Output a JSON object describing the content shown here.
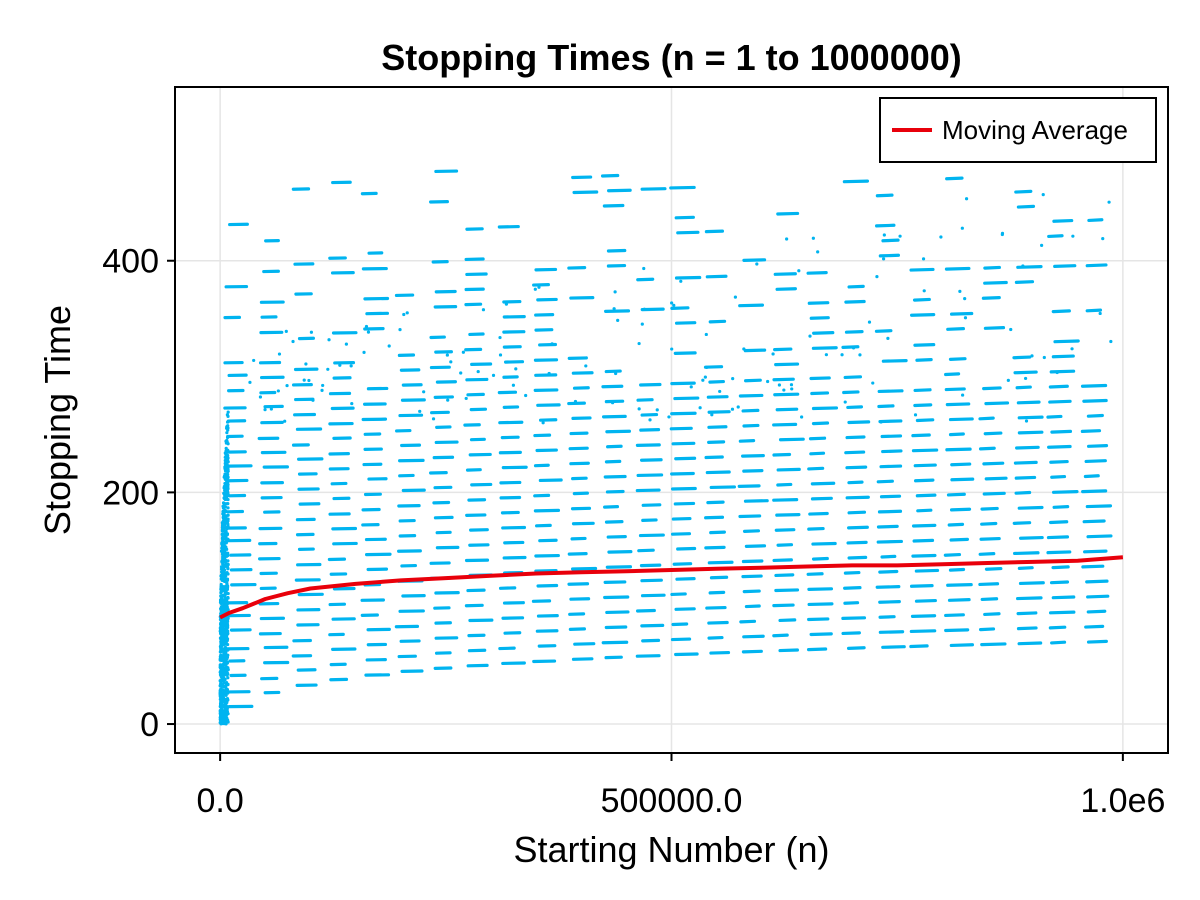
{
  "chart_data": {
    "type": "scatter",
    "title": "Stopping Times (n = 1 to 1000000)",
    "xlabel": "Starting Number (n)",
    "ylabel": "Stopping Time",
    "xlim": [
      -50000,
      1050000
    ],
    "ylim": [
      -25,
      550
    ],
    "x_ticks": [
      0,
      500000,
      1000000
    ],
    "x_tick_labels": [
      "0.0",
      "500000.0",
      "1.0e6"
    ],
    "y_ticks": [
      0,
      200,
      400
    ],
    "y_tick_labels": [
      "0",
      "200",
      "400"
    ],
    "grid": true,
    "legend": {
      "placement": "top-right",
      "entries": [
        "Moving Average"
      ]
    },
    "colors": {
      "scatter": "#00b4f0",
      "moving_average": "#e8000b"
    },
    "series": [
      {
        "kind": "scatter",
        "description_points": "dense banded point cloud of stopping times; bands drift upward with n",
        "band_y_range": [
          0,
          480
        ]
      },
      {
        "name": "Moving Average",
        "kind": "line",
        "x": [
          0,
          10000,
          25000,
          50000,
          75000,
          100000,
          150000,
          200000,
          250000,
          300000,
          350000,
          400000,
          450000,
          500000,
          550000,
          600000,
          650000,
          700000,
          750000,
          800000,
          850000,
          900000,
          950000,
          1000000
        ],
        "y": [
          92,
          96,
          100,
          108,
          113,
          117,
          121,
          124,
          126,
          128,
          130,
          131,
          132,
          133,
          134,
          135,
          136,
          137,
          137,
          138,
          139,
          140,
          141,
          144
        ]
      }
    ]
  }
}
